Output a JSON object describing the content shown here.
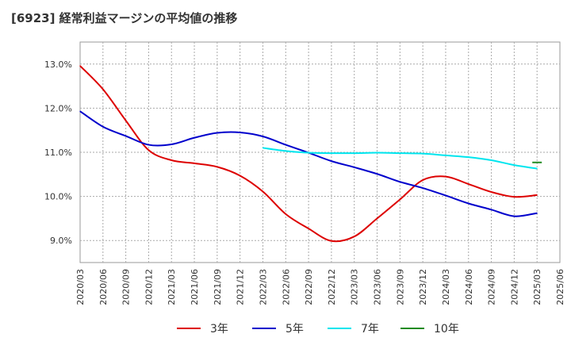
{
  "chart_data": {
    "type": "line",
    "title": "[6923]  経常利益マージンの平均値の推移",
    "xlabel": "",
    "ylabel": "",
    "grid": true,
    "legend_position": "bottom",
    "x_ticks": [
      "2020/03",
      "2020/06",
      "2020/09",
      "2020/12",
      "2021/03",
      "2021/06",
      "2021/09",
      "2021/12",
      "2022/03",
      "2022/06",
      "2022/09",
      "2022/12",
      "2023/03",
      "2023/06",
      "2023/09",
      "2023/12",
      "2024/03",
      "2024/06",
      "2024/09",
      "2024/12",
      "2025/03",
      "2025/06"
    ],
    "y_ticks": [
      9.0,
      10.0,
      11.0,
      12.0,
      13.0
    ],
    "y_tick_labels": [
      "9.0%",
      "10.0%",
      "11.0%",
      "12.0%",
      "13.0%"
    ],
    "ylim": [
      8.5,
      13.5
    ],
    "series": [
      {
        "name": "3年",
        "color": "#dd0000",
        "x": [
          "2020/03",
          "2020/06",
          "2020/09",
          "2020/12",
          "2021/03",
          "2021/06",
          "2021/09",
          "2021/12",
          "2022/03",
          "2022/06",
          "2022/09",
          "2022/12",
          "2023/03",
          "2023/06",
          "2023/09",
          "2023/12",
          "2024/03",
          "2024/06",
          "2024/09",
          "2024/12",
          "2025/03"
        ],
        "values": [
          12.96,
          12.43,
          11.72,
          11.05,
          10.82,
          10.75,
          10.67,
          10.47,
          10.11,
          9.6,
          9.27,
          8.99,
          9.09,
          9.5,
          9.93,
          10.37,
          10.45,
          10.28,
          10.1,
          9.99,
          10.03
        ]
      },
      {
        "name": "5年",
        "color": "#0000cc",
        "x": [
          "2020/03",
          "2020/06",
          "2020/09",
          "2020/12",
          "2021/03",
          "2021/06",
          "2021/09",
          "2021/12",
          "2022/03",
          "2022/06",
          "2022/09",
          "2022/12",
          "2023/03",
          "2023/06",
          "2023/09",
          "2023/12",
          "2024/03",
          "2024/06",
          "2024/09",
          "2024/12",
          "2025/03"
        ],
        "values": [
          11.93,
          11.58,
          11.37,
          11.17,
          11.18,
          11.33,
          11.44,
          11.45,
          11.36,
          11.17,
          10.99,
          10.8,
          10.66,
          10.51,
          10.33,
          10.19,
          10.02,
          9.84,
          9.7,
          9.55,
          9.62
        ]
      },
      {
        "name": "7年",
        "color": "#00e5ee",
        "x": [
          "2022/03",
          "2022/06",
          "2022/09",
          "2022/12",
          "2023/03",
          "2023/06",
          "2023/09",
          "2023/12",
          "2024/03",
          "2024/06",
          "2024/09",
          "2024/12",
          "2025/03"
        ],
        "values": [
          11.1,
          11.03,
          10.99,
          10.98,
          10.98,
          10.99,
          10.98,
          10.97,
          10.93,
          10.89,
          10.82,
          10.71,
          10.63
        ]
      },
      {
        "name": "10年",
        "color": "#228b22",
        "x": [
          "2025/03"
        ],
        "values": [
          10.77
        ]
      }
    ]
  }
}
